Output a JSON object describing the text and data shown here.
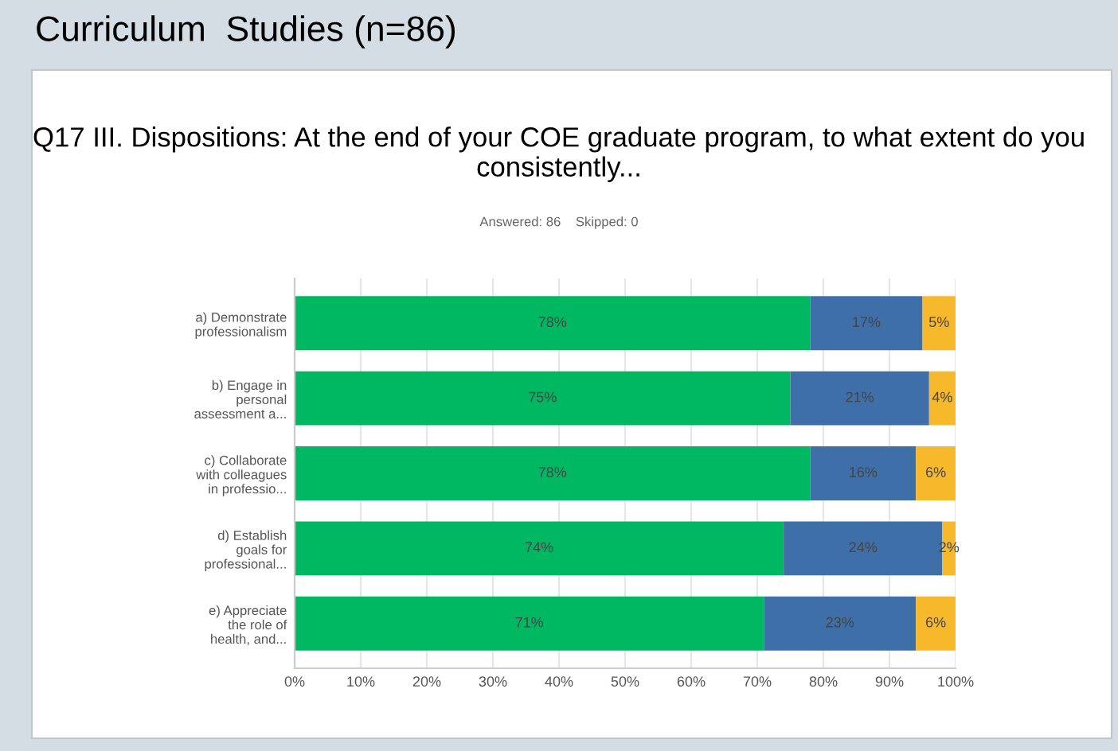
{
  "chart_data": {
    "type": "bar",
    "orientation": "horizontal",
    "stacked": true,
    "title": "Q17 III. Dispositions: At the end of your COE graduate program, to what extent do you consistently...",
    "subtitle": "Answered: 86    Skipped: 0",
    "annotations": [
      "Curriculum  Studies (n=86)"
    ],
    "categories": [
      "a) Demonstrate\nprofessionalism",
      "b) Engage in\npersonal\nassessment a...",
      "c) Collaborate\nwith colleagues\nin professio...",
      "d) Establish\ngoals for\nprofessional...",
      "e) Appreciate\nthe role of\nhealth, and..."
    ],
    "series": [
      {
        "color": "#00b862",
        "values": [
          78,
          75,
          78,
          74,
          71
        ],
        "value_labels": [
          "78%",
          "75%",
          "78%",
          "74%",
          "71%"
        ]
      },
      {
        "color": "#3f6fa8",
        "values": [
          17,
          21,
          16,
          24,
          23
        ],
        "value_labels": [
          "17%",
          "21%",
          "16%",
          "24%",
          "23%"
        ]
      },
      {
        "color": "#f6b92b",
        "values": [
          5,
          4,
          6,
          2,
          6
        ],
        "value_labels": [
          "5%",
          "4%",
          "6%",
          "2%",
          "6%"
        ]
      }
    ],
    "xlim": [
      0,
      100
    ],
    "xticks": [
      {
        "value": 0,
        "label": "0%"
      },
      {
        "value": 10,
        "label": "10%"
      },
      {
        "value": 20,
        "label": "20%"
      },
      {
        "value": 30,
        "label": "30%"
      },
      {
        "value": 40,
        "label": "40%"
      },
      {
        "value": 50,
        "label": "50%"
      },
      {
        "value": 60,
        "label": "60%"
      },
      {
        "value": 70,
        "label": "70%"
      },
      {
        "value": 80,
        "label": "80%"
      },
      {
        "value": 90,
        "label": "90%"
      },
      {
        "value": 100,
        "label": "100%"
      }
    ],
    "grid": "x",
    "legend": false
  }
}
